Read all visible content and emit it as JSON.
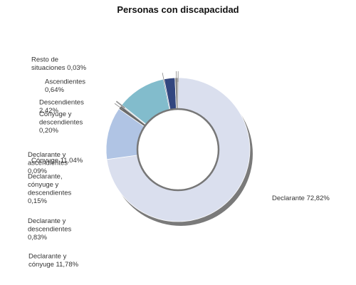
{
  "chart_data": {
    "type": "pie",
    "subtype": "donut",
    "title": "Personas con discapacidad",
    "legend": "none",
    "slices": [
      {
        "label": [
          "Declarante 72,82%"
        ],
        "value": 72.82,
        "color": "#dadfee"
      },
      {
        "label": [
          "Declarante y",
          "cónyuge 11,78%"
        ],
        "value": 11.78,
        "color": "#b0c4e4"
      },
      {
        "label": [
          "Declarante y",
          "descendientes",
          "0,83%"
        ],
        "value": 0.83,
        "color": "#6a6a6a"
      },
      {
        "label": [
          "Declarante,",
          "cónyuge y",
          "descendientes",
          "0,15%"
        ],
        "value": 0.15,
        "color": "#9aa7b0"
      },
      {
        "label": [
          "Declarante y",
          "ascendientes",
          "0,09%"
        ],
        "value": 0.09,
        "color": "#c9c9c9"
      },
      {
        "label": [
          "Cónyuge 11,04%"
        ],
        "value": 11.04,
        "color": "#82bccc"
      },
      {
        "label": [
          "Cónyuge y",
          "descendientes",
          "0,20%"
        ],
        "value": 0.2,
        "color": "#5b6e8a"
      },
      {
        "label": [
          "Descendientes",
          "2,42%"
        ],
        "value": 2.42,
        "color": "#32467f"
      },
      {
        "label": [
          "Ascendientes",
          "0,64%"
        ],
        "value": 0.64,
        "color": "#8a8a8a"
      },
      {
        "label": [
          "Resto de",
          "situaciones 0,03%"
        ],
        "value": 0.03,
        "color": "#5a5a5a"
      }
    ]
  }
}
